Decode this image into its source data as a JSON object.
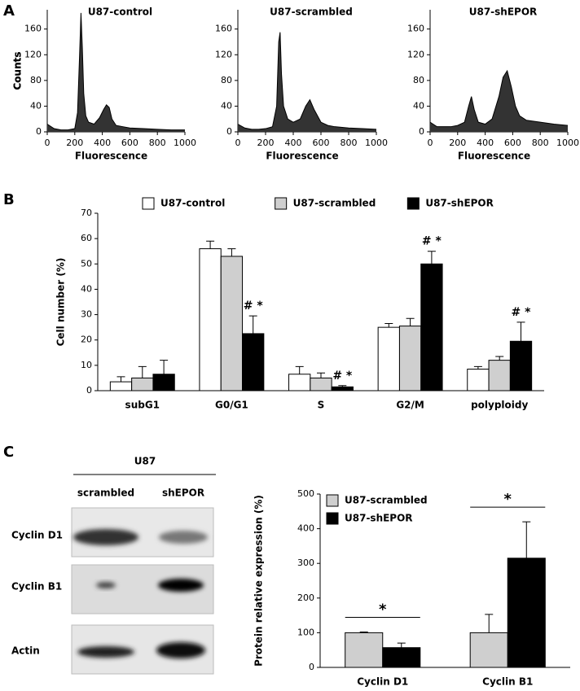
{
  "panel_labels": [
    "A",
    "B",
    "C"
  ],
  "blot": {
    "group": "U87",
    "lanes": [
      "scrambled",
      "shEPOR"
    ],
    "rows": [
      "Cyclin D1",
      "Cyclin B1",
      "Actin"
    ]
  },
  "chart_data": [
    {
      "type": "area",
      "title": "U87-control",
      "x_label": "Fluorescence",
      "y_label": "Counts",
      "color": "#333333",
      "x": [
        0,
        50,
        100,
        150,
        200,
        220,
        235,
        245,
        255,
        265,
        280,
        300,
        340,
        380,
        410,
        430,
        450,
        470,
        500,
        550,
        600,
        700,
        800,
        900,
        1000
      ],
      "values": [
        12,
        5,
        3,
        3,
        5,
        30,
        120,
        185,
        130,
        60,
        25,
        15,
        12,
        22,
        35,
        42,
        38,
        20,
        10,
        8,
        6,
        5,
        4,
        3,
        3
      ],
      "xlim": [
        0,
        1000
      ],
      "xticks": [
        0,
        200,
        400,
        600,
        800,
        1000
      ],
      "ylim": [
        0,
        190
      ],
      "yticks": [
        0,
        40,
        80,
        120,
        160
      ]
    },
    {
      "type": "area",
      "title": "U87-scrambled",
      "x_label": "Fluorescence",
      "y_label": "Counts",
      "color": "#333333",
      "x": [
        0,
        50,
        100,
        150,
        200,
        250,
        280,
        295,
        305,
        315,
        330,
        360,
        400,
        450,
        490,
        520,
        550,
        600,
        650,
        700,
        800,
        900,
        1000
      ],
      "values": [
        12,
        6,
        4,
        4,
        5,
        8,
        40,
        140,
        155,
        90,
        40,
        20,
        15,
        20,
        40,
        50,
        35,
        15,
        10,
        8,
        6,
        5,
        4
      ],
      "xlim": [
        0,
        1000
      ],
      "xticks": [
        0,
        200,
        400,
        600,
        800,
        1000
      ],
      "ylim": [
        0,
        190
      ],
      "yticks": [
        0,
        40,
        80,
        120,
        160
      ]
    },
    {
      "type": "area",
      "title": "U87-shEPOR",
      "x_label": "Fluorescence",
      "y_label": "Counts",
      "color": "#333333",
      "x": [
        0,
        50,
        100,
        150,
        200,
        250,
        280,
        300,
        320,
        350,
        400,
        450,
        500,
        530,
        560,
        590,
        620,
        650,
        700,
        800,
        900,
        1000
      ],
      "values": [
        15,
        8,
        8,
        8,
        10,
        15,
        40,
        55,
        35,
        15,
        12,
        20,
        55,
        85,
        95,
        70,
        40,
        25,
        18,
        15,
        12,
        10
      ],
      "xlim": [
        0,
        1000
      ],
      "xticks": [
        0,
        200,
        400,
        600,
        800,
        1000
      ],
      "ylim": [
        0,
        190
      ],
      "yticks": [
        0,
        40,
        80,
        120,
        160
      ]
    },
    {
      "type": "bar",
      "y_label": "Cell number (%)",
      "legend": "top",
      "categories": [
        "subG1",
        "G0/G1",
        "S",
        "G2/M",
        "polyploidy"
      ],
      "series": [
        {
          "name": "U87-control",
          "color": "#ffffff",
          "values": [
            3.5,
            56,
            6.5,
            25,
            8.5
          ],
          "errors": [
            2,
            3,
            3,
            1.5,
            1
          ]
        },
        {
          "name": "U87-scrambled",
          "color": "#cfcfcf",
          "values": [
            5,
            53,
            5,
            25.5,
            12
          ],
          "errors": [
            4.5,
            3,
            2,
            3,
            1.5
          ]
        },
        {
          "name": "U87-shEPOR",
          "color": "#000000",
          "values": [
            6.5,
            22.5,
            1.5,
            50,
            19.5
          ],
          "errors": [
            5.5,
            7,
            0.5,
            5,
            7.5
          ],
          "annotations": [
            null,
            "# *",
            "# *",
            "# *",
            "# *"
          ]
        }
      ],
      "ylim": [
        0,
        70
      ],
      "yticks": [
        0,
        10,
        20,
        30,
        40,
        50,
        60,
        70
      ]
    },
    {
      "type": "bar",
      "y_label": "Protein relative expression (%)",
      "legend": "upper left",
      "categories": [
        "Cyclin D1",
        "Cyclin B1"
      ],
      "series": [
        {
          "name": "U87-scrambled",
          "color": "#cfcfcf",
          "values": [
            100,
            100
          ],
          "errors": [
            2,
            53
          ]
        },
        {
          "name": "U87-shEPOR",
          "color": "#000000",
          "values": [
            57,
            315
          ],
          "errors": [
            13,
            105
          ]
        }
      ],
      "significance": [
        "*",
        "*"
      ],
      "ylim": [
        0,
        500
      ],
      "yticks": [
        0,
        100,
        200,
        300,
        400,
        500
      ]
    }
  ]
}
